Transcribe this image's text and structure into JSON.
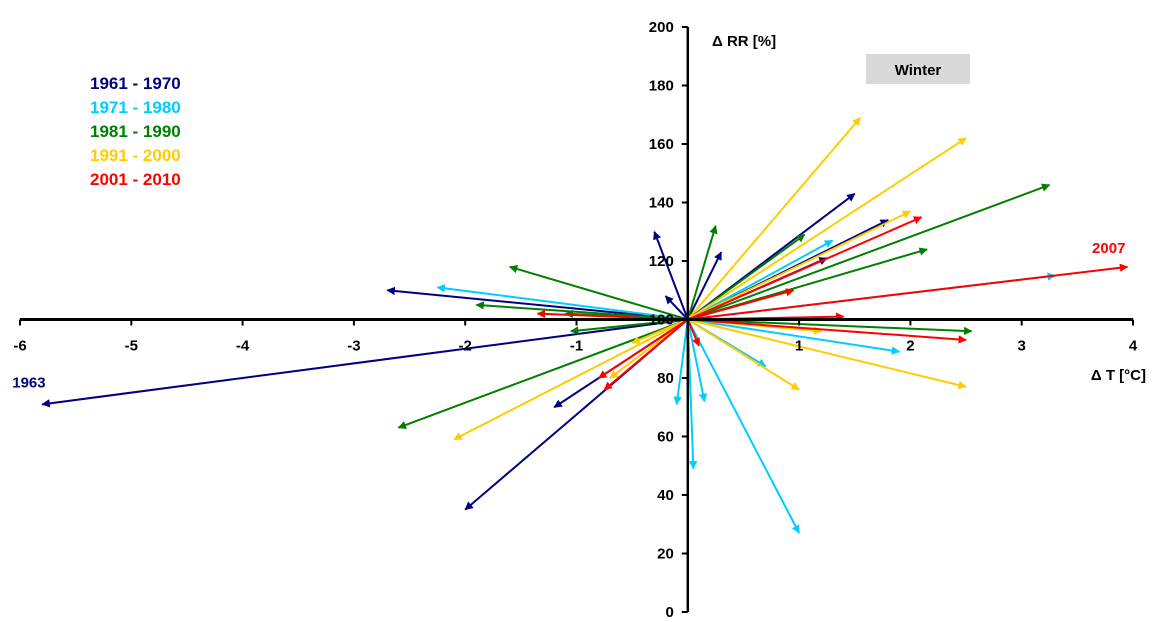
{
  "chart_data": {
    "type": "vector",
    "season_badge": "Winter",
    "xlabel": "Δ T [°C]",
    "ylabel": "Δ RR [%]",
    "xlim": [
      -6,
      4
    ],
    "ylim": [
      0,
      200
    ],
    "origin": [
      0,
      100
    ],
    "x_ticks": [
      "-6",
      "-5",
      "-4",
      "-3",
      "-2",
      "-1",
      "1",
      "2",
      "3",
      "4"
    ],
    "y_ticks": [
      "0",
      "20",
      "40",
      "60",
      "80",
      "100",
      "120",
      "140",
      "160",
      "180",
      "200"
    ],
    "grid": false,
    "legend_position": "top-left",
    "annotations": [
      {
        "text": "1963",
        "x": -5.8,
        "y": 71,
        "color": "#000080"
      },
      {
        "text": "2007",
        "x": 3.95,
        "y": 118,
        "color": "#FF0000"
      }
    ],
    "series": [
      {
        "name": "1961 - 1970",
        "color": "#000080",
        "points": [
          {
            "x": -5.8,
            "y": 71
          },
          {
            "x": -2.7,
            "y": 110
          },
          {
            "x": -2.0,
            "y": 35
          },
          {
            "x": -1.2,
            "y": 70
          },
          {
            "x": -0.3,
            "y": 130
          },
          {
            "x": -0.2,
            "y": 108
          },
          {
            "x": 0.3,
            "y": 123
          },
          {
            "x": 1.5,
            "y": 143
          },
          {
            "x": 1.8,
            "y": 134
          },
          {
            "x": 1.25,
            "y": 121
          }
        ]
      },
      {
        "name": "1971 - 1980",
        "color": "#00CCFF",
        "points": [
          {
            "x": -2.25,
            "y": 111
          },
          {
            "x": -0.1,
            "y": 71
          },
          {
            "x": 0.05,
            "y": 49
          },
          {
            "x": 0.15,
            "y": 72
          },
          {
            "x": 1.0,
            "y": 27
          },
          {
            "x": 0.7,
            "y": 84
          },
          {
            "x": 1.9,
            "y": 89
          },
          {
            "x": 3.3,
            "y": 115
          },
          {
            "x": 1.3,
            "y": 127
          }
        ]
      },
      {
        "name": "1981 - 1990",
        "color": "#008000",
        "points": [
          {
            "x": -2.6,
            "y": 63
          },
          {
            "x": -1.6,
            "y": 118
          },
          {
            "x": -1.9,
            "y": 105
          },
          {
            "x": -1.1,
            "y": 102
          },
          {
            "x": -1.05,
            "y": 96
          },
          {
            "x": 0.25,
            "y": 132
          },
          {
            "x": 1.05,
            "y": 129
          },
          {
            "x": 2.15,
            "y": 124
          },
          {
            "x": 3.25,
            "y": 146
          },
          {
            "x": 2.55,
            "y": 96
          }
        ]
      },
      {
        "name": "1991 - 2000",
        "color": "#FFCC00",
        "points": [
          {
            "x": -2.1,
            "y": 59
          },
          {
            "x": -0.5,
            "y": 92
          },
          {
            "x": -0.7,
            "y": 80
          },
          {
            "x": 1.55,
            "y": 169
          },
          {
            "x": 2.5,
            "y": 162
          },
          {
            "x": 2.0,
            "y": 137
          },
          {
            "x": 1.0,
            "y": 76
          },
          {
            "x": 2.5,
            "y": 77
          },
          {
            "x": 1.2,
            "y": 96
          }
        ]
      },
      {
        "name": "2001 - 2010",
        "color": "#FF0000",
        "points": [
          {
            "x": -1.35,
            "y": 102
          },
          {
            "x": -0.8,
            "y": 80
          },
          {
            "x": -0.75,
            "y": 76
          },
          {
            "x": 0.1,
            "y": 91
          },
          {
            "x": 0.95,
            "y": 110
          },
          {
            "x": 2.1,
            "y": 135
          },
          {
            "x": 3.95,
            "y": 118
          },
          {
            "x": 2.5,
            "y": 93
          },
          {
            "x": 1.4,
            "y": 101
          }
        ]
      }
    ]
  }
}
